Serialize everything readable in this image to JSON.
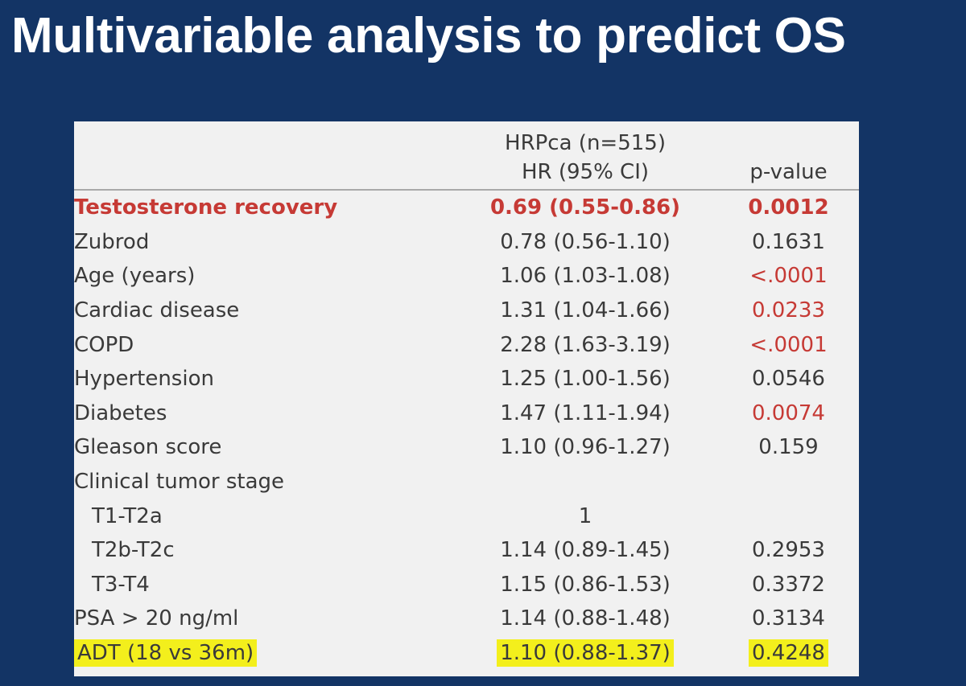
{
  "slide": {
    "title": "Multivariable analysis to predict OS"
  },
  "table": {
    "group_header": "HRPca (n=515)",
    "col_hr": "HR (95% CI)",
    "col_p": "p-value",
    "rows": [
      {
        "variable": "Testosterone recovery",
        "hr": "0.69 (0.55-0.86)",
        "p": "0.0012"
      },
      {
        "variable": "Zubrod",
        "hr": "0.78 (0.56-1.10)",
        "p": "0.1631"
      },
      {
        "variable": "Age (years)",
        "hr": "1.06 (1.03-1.08)",
        "p": "<.0001"
      },
      {
        "variable": "Cardiac disease",
        "hr": "1.31 (1.04-1.66)",
        "p": "0.0233"
      },
      {
        "variable": "COPD",
        "hr": "2.28 (1.63-3.19)",
        "p": "<.0001"
      },
      {
        "variable": "Hypertension",
        "hr": "1.25 (1.00-1.56)",
        "p": "0.0546"
      },
      {
        "variable": "Diabetes",
        "hr": "1.47 (1.11-1.94)",
        "p": "0.0074"
      },
      {
        "variable": "Gleason score",
        "hr": "1.10 (0.96-1.27)",
        "p": "0.159"
      },
      {
        "variable": "Clinical tumor stage",
        "hr": "",
        "p": ""
      },
      {
        "variable": "T1-T2a",
        "hr": "1",
        "p": ""
      },
      {
        "variable": "T2b-T2c",
        "hr": "1.14 (0.89-1.45)",
        "p": "0.2953"
      },
      {
        "variable": "T3-T4",
        "hr": "1.15 (0.86-1.53)",
        "p": "0.3372"
      },
      {
        "variable": "PSA > 20 ng/ml",
        "hr": "1.14 (0.88-1.48)",
        "p": "0.3134"
      },
      {
        "variable": "ADT (18 vs 36m)",
        "hr": "1.10 (0.88-1.37)",
        "p": "0.4248"
      }
    ]
  },
  "colors": {
    "slide_background": "#133465",
    "table_background": "#f1f1f1",
    "significant_red": "#c63a35",
    "highlight_yellow": "#f3ef1c",
    "body_text": "#3a3a3a"
  }
}
